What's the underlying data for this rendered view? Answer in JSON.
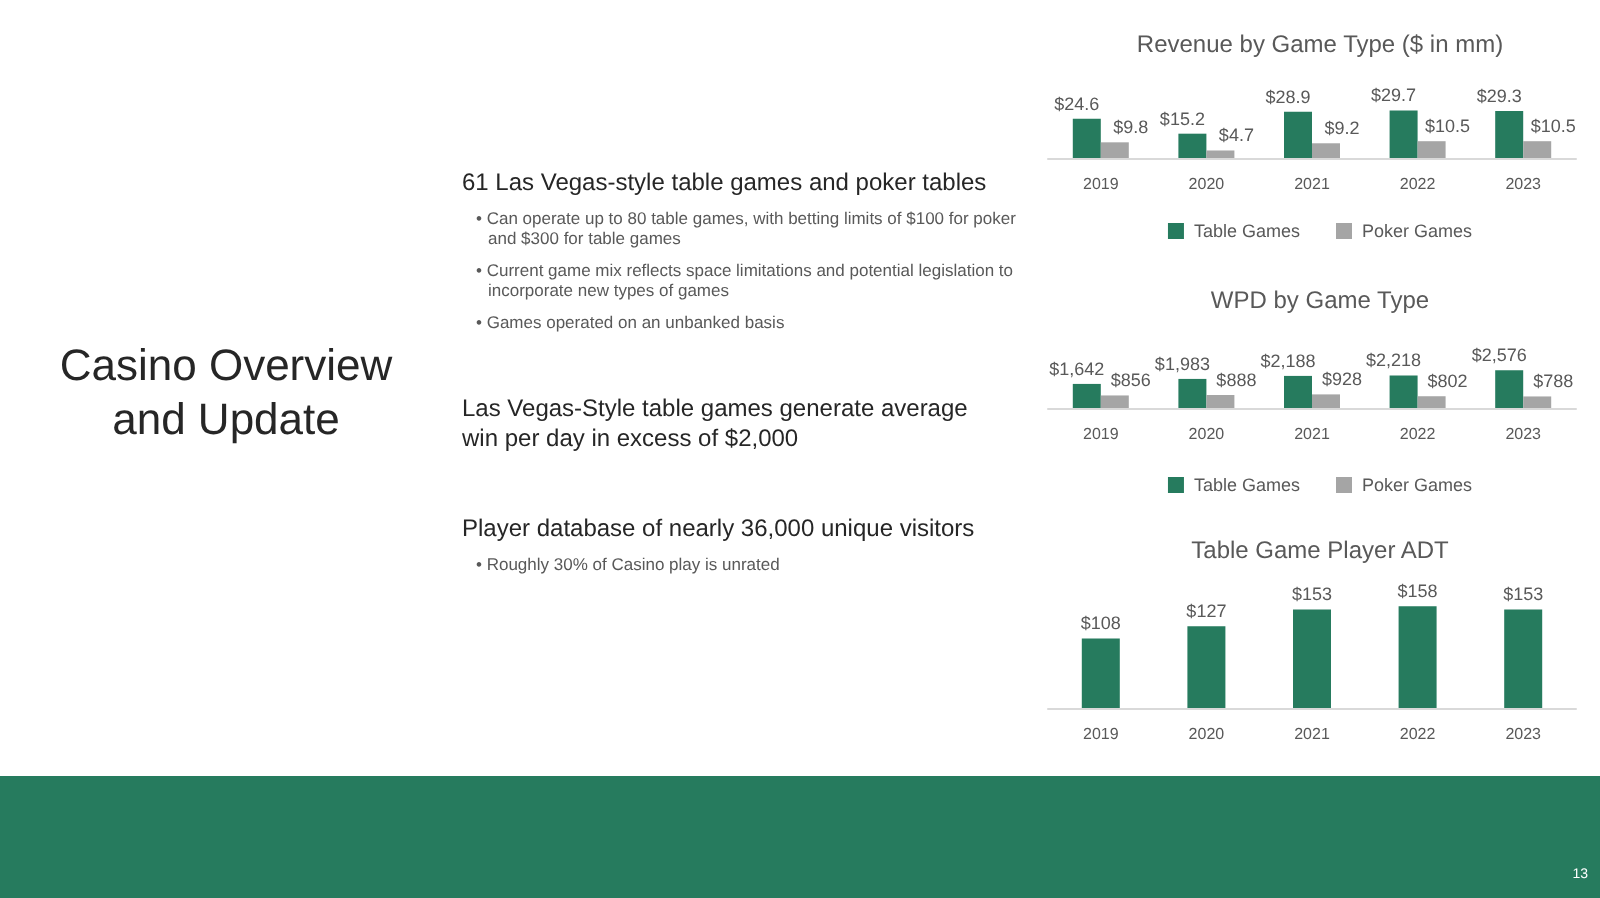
{
  "chart_data": [
    {
      "type": "other",
      "title": "Casino Overview and Update",
      "annotations": [
        "61 Las Vegas-style table games and poker tables",
        "• Can operate up to 80 table games, with betting limits of $100 for poker and $300 for table games",
        "• Current game mix reflects space limitations and potential legislation to incorporate new types of games",
        "• Games operated on an unbanked basis",
        "Las Vegas-Style table games generate average win per day in excess of $2,000",
        "Player database of nearly 36,000 unique visitors",
        "• Roughly 30% of Casino play is unrated",
        "13"
      ]
    },
    {
      "type": "bar",
      "title": "Revenue by Game Type ($ in mm)",
      "categories": [
        "2019",
        "2020",
        "2021",
        "2022",
        "2023"
      ],
      "series": [
        {
          "name": "Table Games",
          "color": "#267b5e",
          "values": [
            24.6,
            15.2,
            28.9,
            29.7,
            29.3
          ],
          "value_labels": [
            "$24.6",
            "$15.2",
            "$28.9",
            "$29.7",
            "$29.3"
          ]
        },
        {
          "name": "Poker Games",
          "color": "#a5a5a5",
          "values": [
            9.8,
            4.7,
            9.2,
            10.5,
            10.5
          ],
          "value_labels": [
            "$9.8",
            "$4.7",
            "$9.2",
            "$10.5",
            "$10.5"
          ]
        }
      ],
      "legend": "bottom"
    },
    {
      "type": "bar",
      "title": "WPD by Game Type",
      "categories": [
        "2019",
        "2020",
        "2021",
        "2022",
        "2023"
      ],
      "series": [
        {
          "name": "Table Games",
          "color": "#267b5e",
          "values": [
            1642,
            1983,
            2188,
            2218,
            2576
          ],
          "value_labels": [
            "$1,642",
            "$1,983",
            "$2,188",
            "$2,218",
            "$2,576"
          ]
        },
        {
          "name": "Poker Games",
          "color": "#a5a5a5",
          "values": [
            856,
            888,
            928,
            802,
            788
          ],
          "value_labels": [
            "$856",
            "$888",
            "$928",
            "$802",
            "$788"
          ]
        }
      ],
      "legend": "bottom"
    },
    {
      "type": "bar",
      "title": "Table Game Player ADT",
      "categories": [
        "2019",
        "2020",
        "2021",
        "2022",
        "2023"
      ],
      "color": "#267b5e",
      "values": [
        108,
        127,
        153,
        158,
        153
      ],
      "value_labels": [
        "$108",
        "$127",
        "$153",
        "$158",
        "$153"
      ]
    }
  ]
}
